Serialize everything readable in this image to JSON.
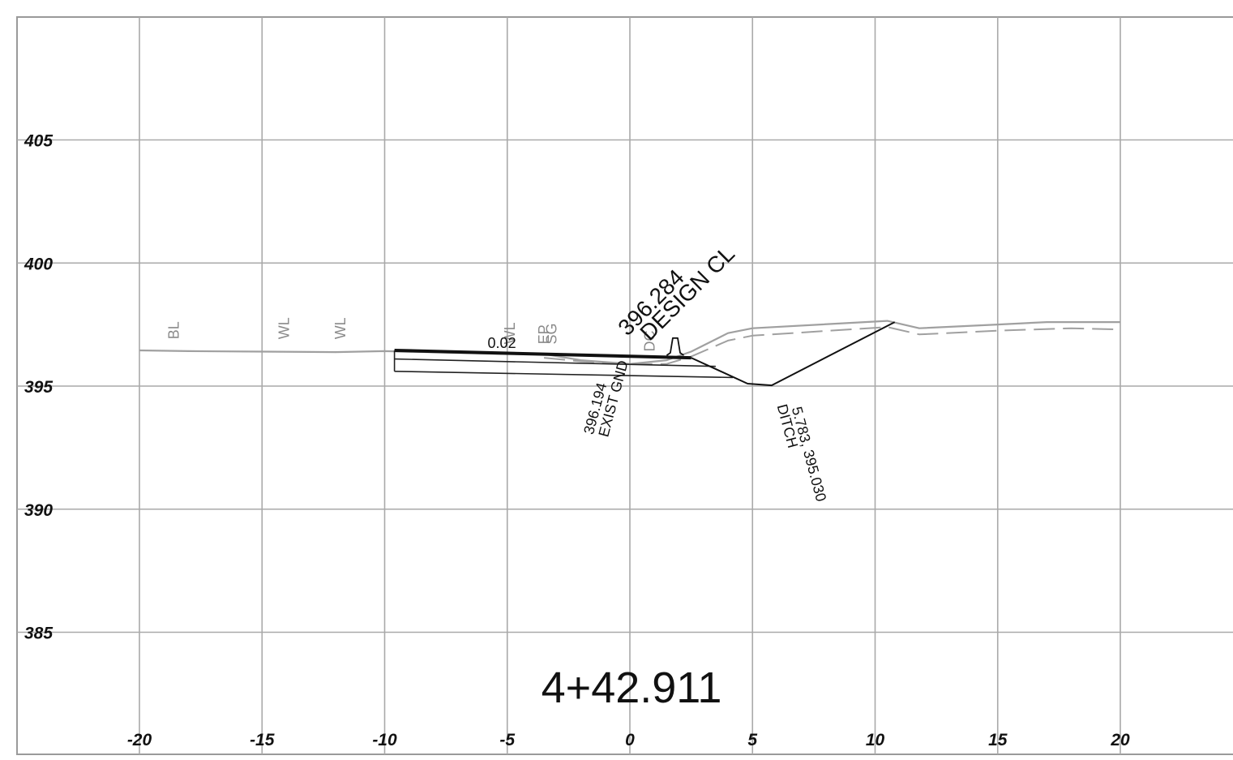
{
  "chart_data": {
    "type": "line",
    "title": "4+42.911",
    "xlim": [
      -25,
      25
    ],
    "ylim": [
      380,
      410
    ],
    "x_ticks": [
      "-20",
      "-15",
      "-10",
      "-5",
      "0",
      "5",
      "10",
      "15",
      "20"
    ],
    "y_ticks": [
      "405",
      "400",
      "395",
      "390",
      "385"
    ],
    "grid": true,
    "series": [
      {
        "style": "solid-gray",
        "points": [
          [
            -20,
            396.45
          ],
          [
            -18,
            396.42
          ],
          [
            -15,
            396.4
          ],
          [
            -12,
            396.38
          ],
          [
            -10,
            396.42
          ],
          [
            -5,
            396.3
          ],
          [
            -3.5,
            396.3
          ],
          [
            -2,
            396.05
          ],
          [
            0,
            395.9
          ],
          [
            1.5,
            396.05
          ],
          [
            2.5,
            396.4
          ],
          [
            4,
            397.15
          ],
          [
            5,
            397.35
          ],
          [
            10.5,
            397.65
          ],
          [
            11.8,
            397.35
          ],
          [
            15,
            397.5
          ],
          [
            17,
            397.6
          ],
          [
            20,
            397.6
          ]
        ]
      },
      {
        "style": "dashed-gray",
        "points": [
          [
            -3.5,
            396.15
          ],
          [
            -2,
            396
          ],
          [
            0,
            395.9
          ],
          [
            1.5,
            395.9
          ],
          [
            2.5,
            396.2
          ],
          [
            4,
            396.85
          ],
          [
            5,
            397.05
          ],
          [
            10.5,
            397.4
          ],
          [
            11.8,
            397.1
          ],
          [
            15,
            397.25
          ],
          [
            18,
            397.35
          ],
          [
            20,
            397.3
          ]
        ]
      },
      {
        "style": "road-surface",
        "points": [
          [
            -9.6,
            396.45
          ],
          [
            2.5,
            396.15
          ]
        ]
      },
      {
        "style": "pavement-layer",
        "points": [
          [
            -9.6,
            396.1
          ],
          [
            3.5,
            395.8
          ]
        ]
      },
      {
        "style": "pavement-layer",
        "points": [
          [
            -9.6,
            395.6
          ],
          [
            4.2,
            395.35
          ]
        ]
      },
      {
        "style": "pavement-edge",
        "points": [
          [
            -9.6,
            396.45
          ],
          [
            -9.6,
            395.6
          ]
        ]
      },
      {
        "style": "foreslope",
        "points": [
          [
            2.5,
            396.15
          ],
          [
            4.8,
            395.1
          ],
          [
            5.783,
            395.03
          ],
          [
            10.8,
            397.6
          ]
        ]
      },
      {
        "style": "curb",
        "points": [
          [
            1.5,
            396.25
          ],
          [
            1.65,
            396.35
          ],
          [
            1.75,
            396.95
          ],
          [
            1.95,
            396.95
          ],
          [
            2.05,
            396.35
          ],
          [
            2.2,
            396.25
          ]
        ]
      }
    ],
    "annotations": [
      {
        "text": "BL",
        "x": -18.4,
        "y": 396.9,
        "rotate": -90,
        "color": "gray"
      },
      {
        "text": "WL",
        "x": -13.9,
        "y": 396.9,
        "rotate": -90,
        "color": "gray"
      },
      {
        "text": "WL",
        "x": -11.6,
        "y": 396.9,
        "rotate": -90,
        "color": "gray"
      },
      {
        "text": "WL",
        "x": -4.7,
        "y": 396.7,
        "rotate": -90,
        "color": "gray"
      },
      {
        "text": "EP",
        "x": -3.3,
        "y": 396.7,
        "rotate": -90,
        "color": "gray"
      },
      {
        "text": "SG",
        "x": -3.0,
        "y": 396.7,
        "rotate": -90,
        "color": "gray"
      },
      {
        "text": "DC",
        "x": 1.0,
        "y": 396.4,
        "rotate": -90,
        "color": "gray"
      },
      {
        "text": "0.02",
        "x": -5.8,
        "y": 396.55,
        "rotate": 0,
        "color": "black"
      },
      {
        "text": "396.284",
        "x": -0.1,
        "y": 397.0,
        "rotate": -45,
        "color": "black"
      },
      {
        "text": "DESIGN CL",
        "x": 0.8,
        "y": 396.8,
        "rotate": -45,
        "color": "black"
      },
      {
        "text": "396.194",
        "x": -1.5,
        "y": 393.0,
        "rotate": -75,
        "color": "black"
      },
      {
        "text": "EXIST GND",
        "x": -0.9,
        "y": 392.9,
        "rotate": -75,
        "color": "black"
      },
      {
        "text": "5.783, 395.030",
        "x": 6.6,
        "y": 394.1,
        "rotate": 75,
        "color": "black"
      },
      {
        "text": "DITCH",
        "x": 6.0,
        "y": 394.2,
        "rotate": 75,
        "color": "black"
      }
    ]
  }
}
